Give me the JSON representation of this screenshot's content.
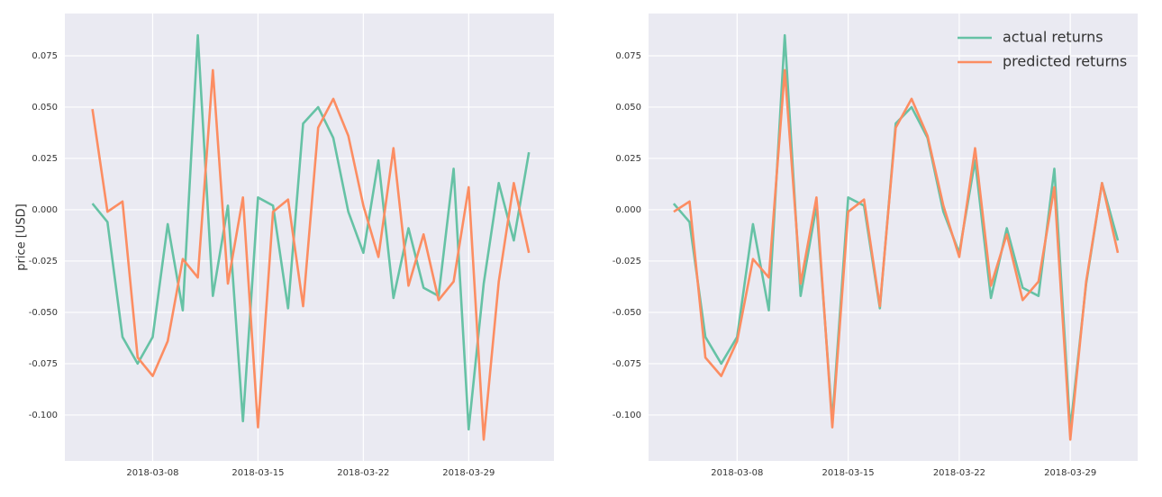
{
  "chart_data": [
    {
      "type": "line",
      "ylabel": "price [USD]",
      "x": [
        "2018-03-04",
        "2018-03-05",
        "2018-03-06",
        "2018-03-07",
        "2018-03-08",
        "2018-03-09",
        "2018-03-10",
        "2018-03-11",
        "2018-03-12",
        "2018-03-13",
        "2018-03-14",
        "2018-03-15",
        "2018-03-16",
        "2018-03-17",
        "2018-03-18",
        "2018-03-19",
        "2018-03-20",
        "2018-03-21",
        "2018-03-22",
        "2018-03-23",
        "2018-03-24",
        "2018-03-25",
        "2018-03-26",
        "2018-03-27",
        "2018-03-28",
        "2018-03-29",
        "2018-03-30",
        "2018-03-31",
        "2018-04-01",
        "2018-04-02"
      ],
      "series": [
        {
          "name": "actual returns",
          "color": "#66c2a5",
          "values": [
            0.003,
            -0.006,
            -0.062,
            -0.075,
            -0.062,
            -0.007,
            -0.049,
            0.085,
            -0.042,
            0.002,
            -0.103,
            0.006,
            0.002,
            -0.048,
            0.042,
            0.05,
            0.035,
            -0.001,
            -0.021,
            0.024,
            -0.043,
            -0.009,
            -0.038,
            -0.042,
            0.02,
            -0.107,
            -0.036,
            0.013,
            -0.015,
            0.028
          ]
        },
        {
          "name": "predicted returns",
          "color": "#fc8d62",
          "values": [
            0.049,
            -0.001,
            0.004,
            -0.072,
            -0.081,
            -0.064,
            -0.024,
            -0.033,
            0.068,
            -0.036,
            0.006,
            -0.106,
            -0.001,
            0.005,
            -0.047,
            0.04,
            0.054,
            0.036,
            0.002,
            -0.023,
            0.03,
            -0.037,
            -0.012,
            -0.044,
            -0.035,
            0.011,
            -0.112,
            -0.035,
            0.013,
            -0.021
          ]
        }
      ],
      "xlim": [
        "2018-03-02T04:00",
        "2018-04-03T16:00"
      ],
      "xticks": [
        "2018-03-08",
        "2018-03-15",
        "2018-03-22",
        "2018-03-29"
      ],
      "ylim": [
        -0.1224,
        0.0956
      ],
      "yticks": [
        {
          "value": -0.1,
          "label": "-0.100"
        },
        -0.075,
        {
          "value": -0.05,
          "label": "-0.050"
        },
        -0.025,
        {
          "value": 0,
          "label": "0.000"
        },
        0.025,
        {
          "value": 0.05,
          "label": "0.050"
        },
        0.075
      ],
      "grid": true
    },
    {
      "type": "line",
      "x": [
        "2018-03-04",
        "2018-03-05",
        "2018-03-06",
        "2018-03-07",
        "2018-03-08",
        "2018-03-09",
        "2018-03-10",
        "2018-03-11",
        "2018-03-12",
        "2018-03-13",
        "2018-03-14",
        "2018-03-15",
        "2018-03-16",
        "2018-03-17",
        "2018-03-18",
        "2018-03-19",
        "2018-03-20",
        "2018-03-21",
        "2018-03-22",
        "2018-03-23",
        "2018-03-24",
        "2018-03-25",
        "2018-03-26",
        "2018-03-27",
        "2018-03-28",
        "2018-03-29",
        "2018-03-30",
        "2018-03-31",
        "2018-04-01"
      ],
      "series": [
        {
          "name": "actual returns",
          "color": "#66c2a5",
          "values": [
            0.003,
            -0.006,
            -0.062,
            -0.075,
            -0.062,
            -0.007,
            -0.049,
            0.085,
            -0.042,
            0.002,
            -0.103,
            0.006,
            0.002,
            -0.048,
            0.042,
            0.05,
            0.035,
            -0.001,
            -0.021,
            0.024,
            -0.043,
            -0.009,
            -0.038,
            -0.042,
            0.02,
            -0.107,
            -0.036,
            0.013,
            -0.015
          ]
        },
        {
          "name": "predicted returns",
          "color": "#fc8d62",
          "values": [
            -0.001,
            0.004,
            -0.072,
            -0.081,
            -0.064,
            -0.024,
            -0.033,
            0.068,
            -0.036,
            0.006,
            -0.106,
            -0.001,
            0.005,
            -0.047,
            0.04,
            0.054,
            0.036,
            0.002,
            -0.023,
            0.03,
            -0.037,
            -0.012,
            -0.044,
            -0.035,
            0.011,
            -0.112,
            -0.035,
            0.013,
            -0.021
          ]
        }
      ],
      "xlim": [
        "2018-03-02T10:00",
        "2018-04-02T06:00"
      ],
      "xticks": [
        "2018-03-08",
        "2018-03-15",
        "2018-03-22",
        "2018-03-29"
      ],
      "ylim": [
        -0.1224,
        0.0956
      ],
      "yticks": [
        {
          "value": -0.1,
          "label": "-0.100"
        },
        -0.075,
        {
          "value": -0.05,
          "label": "-0.050"
        },
        -0.025,
        {
          "value": 0,
          "label": "0.000"
        },
        0.025,
        {
          "value": 0.05,
          "label": "0.050"
        },
        0.075
      ],
      "grid": true,
      "legend": "upper right"
    }
  ]
}
